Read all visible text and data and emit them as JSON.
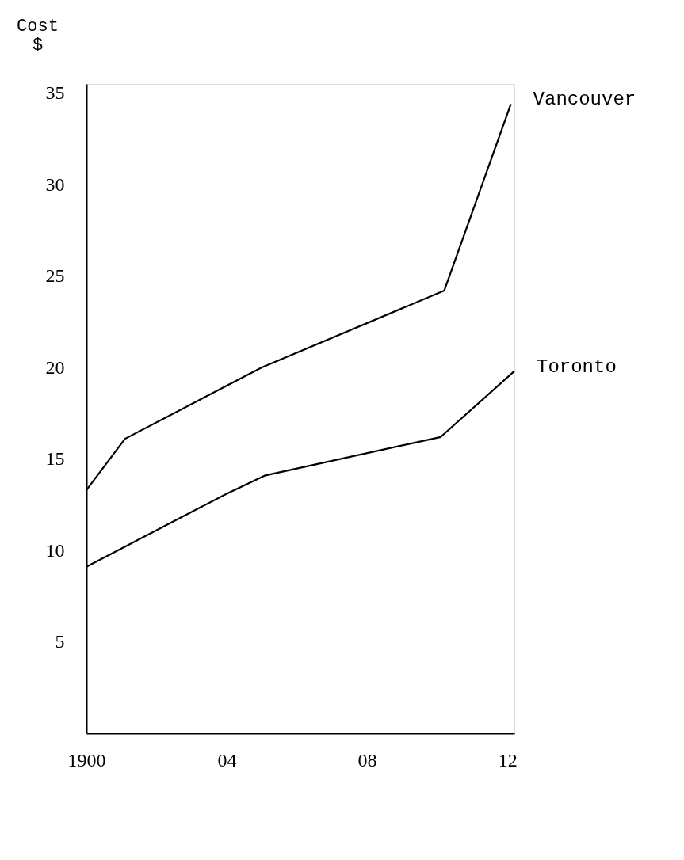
{
  "chart_data": {
    "type": "line",
    "ylabel": "Cost\n$",
    "xlim": [
      1900,
      1912.2
    ],
    "xticks": [
      {
        "value": 1900,
        "label": "1900"
      },
      {
        "value": 1904,
        "label": "04"
      },
      {
        "value": 1908,
        "label": "08"
      },
      {
        "value": 1912,
        "label": "12"
      }
    ],
    "ylim": [
      0,
      35.5
    ],
    "yticks": [
      5,
      10,
      15,
      20,
      25,
      30,
      35
    ],
    "grid": false,
    "legend": false,
    "marker": "none",
    "line_style": "solid",
    "series": [
      {
        "name": "Vancouver",
        "color": "#000000",
        "x": [
          1900,
          1901.1,
          1905,
          1910.2,
          1912.1
        ],
        "values": [
          13.3,
          16.1,
          20,
          24.2,
          34.4
        ]
      },
      {
        "name": "Toronto",
        "color": "#000000",
        "x": [
          1900,
          1904,
          1905.1,
          1910.1,
          1912.2
        ],
        "values": [
          9.1,
          13.1,
          14.1,
          16.2,
          19.8
        ]
      }
    ]
  }
}
